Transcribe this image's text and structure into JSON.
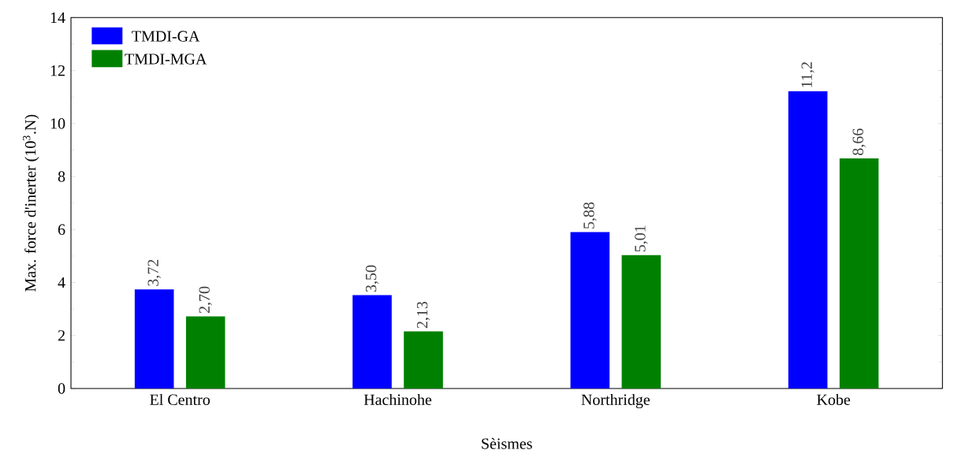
{
  "chart_data": {
    "type": "bar",
    "xlabel": "Sèismes",
    "ylabel": "Max. force d'inerter (10$^{3}$.N)",
    "categories": [
      "El Centro",
      "Hachinohe",
      "Northridge",
      "Kobe"
    ],
    "series": [
      {
        "name": "TMDI-GA",
        "color": "#0000ff",
        "values": [
          3.72,
          3.5,
          5.88,
          11.2
        ],
        "value_labels": [
          "3,72",
          "3,50",
          "5,88",
          "11,2"
        ]
      },
      {
        "name": "TMDI-MGA",
        "color": "#008000",
        "values": [
          2.7,
          2.13,
          5.01,
          8.66
        ],
        "value_labels": [
          "2,70",
          "2,13",
          "5,01",
          "8,66"
        ]
      }
    ],
    "ylim": [
      0,
      14
    ],
    "yticks": [
      0,
      2,
      4,
      6,
      8,
      10,
      12,
      14
    ],
    "legend": "top left"
  }
}
